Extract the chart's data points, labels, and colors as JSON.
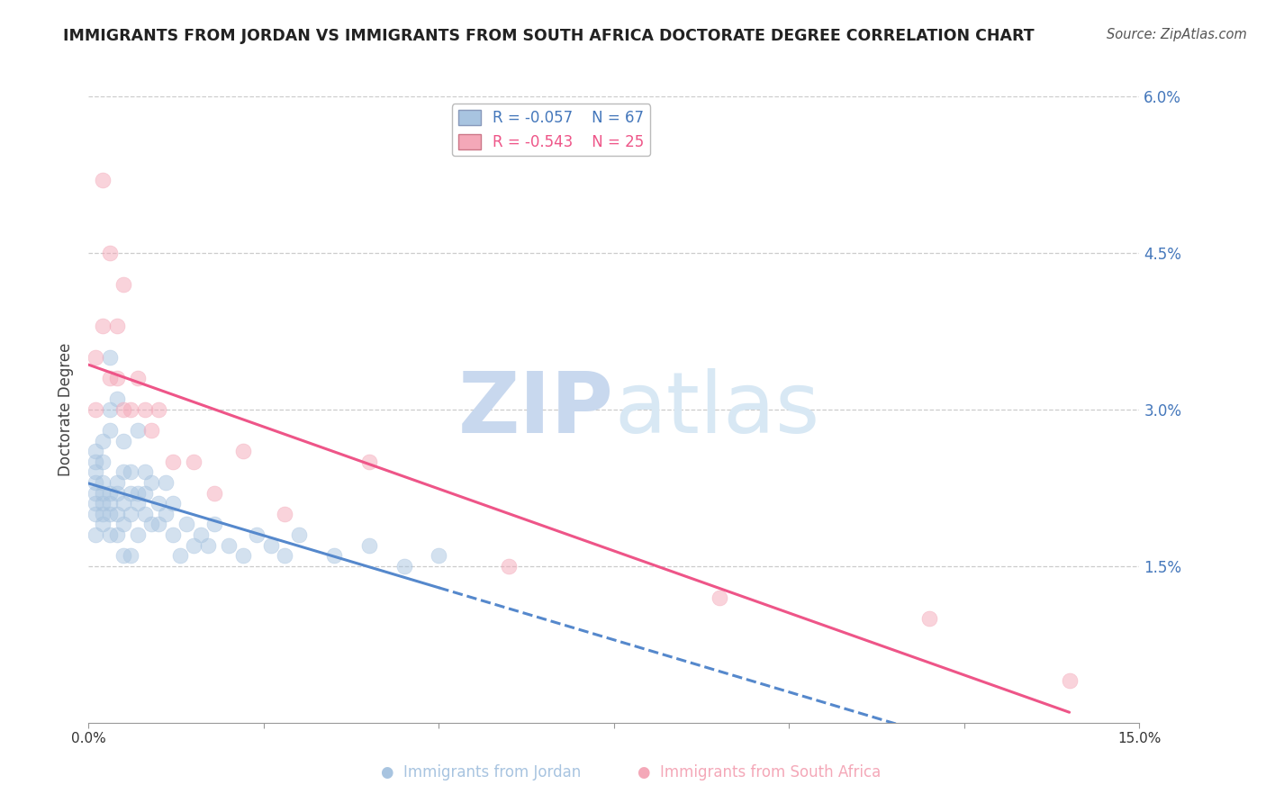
{
  "title": "IMMIGRANTS FROM JORDAN VS IMMIGRANTS FROM SOUTH AFRICA DOCTORATE DEGREE CORRELATION CHART",
  "source": "Source: ZipAtlas.com",
  "ylabel": "Doctorate Degree",
  "right_yticks": [
    0.0,
    0.015,
    0.03,
    0.045,
    0.06
  ],
  "right_yticklabels": [
    "",
    "1.5%",
    "3.0%",
    "4.5%",
    "6.0%"
  ],
  "xlim": [
    0.0,
    0.15
  ],
  "ylim": [
    0.0,
    0.06
  ],
  "jordan_color": "#A8C4E0",
  "south_africa_color": "#F4A8B8",
  "jordan_line_color": "#5588CC",
  "sa_line_color": "#EE5588",
  "jordan_R": -0.057,
  "jordan_N": 67,
  "south_africa_R": -0.543,
  "south_africa_N": 25,
  "jordan_x": [
    0.001,
    0.001,
    0.001,
    0.001,
    0.001,
    0.001,
    0.001,
    0.001,
    0.002,
    0.002,
    0.002,
    0.002,
    0.002,
    0.002,
    0.002,
    0.003,
    0.003,
    0.003,
    0.003,
    0.003,
    0.003,
    0.003,
    0.004,
    0.004,
    0.004,
    0.004,
    0.004,
    0.005,
    0.005,
    0.005,
    0.005,
    0.005,
    0.006,
    0.006,
    0.006,
    0.006,
    0.007,
    0.007,
    0.007,
    0.007,
    0.008,
    0.008,
    0.008,
    0.009,
    0.009,
    0.01,
    0.01,
    0.011,
    0.011,
    0.012,
    0.012,
    0.013,
    0.014,
    0.015,
    0.016,
    0.017,
    0.018,
    0.02,
    0.022,
    0.024,
    0.026,
    0.028,
    0.03,
    0.035,
    0.04,
    0.045,
    0.05
  ],
  "jordan_y": [
    0.022,
    0.024,
    0.025,
    0.026,
    0.02,
    0.021,
    0.023,
    0.018,
    0.019,
    0.021,
    0.022,
    0.023,
    0.025,
    0.027,
    0.02,
    0.018,
    0.02,
    0.022,
    0.028,
    0.03,
    0.021,
    0.035,
    0.022,
    0.023,
    0.031,
    0.018,
    0.02,
    0.019,
    0.021,
    0.024,
    0.016,
    0.027,
    0.022,
    0.024,
    0.016,
    0.02,
    0.018,
    0.021,
    0.028,
    0.022,
    0.02,
    0.022,
    0.024,
    0.019,
    0.023,
    0.019,
    0.021,
    0.02,
    0.023,
    0.018,
    0.021,
    0.016,
    0.019,
    0.017,
    0.018,
    0.017,
    0.019,
    0.017,
    0.016,
    0.018,
    0.017,
    0.016,
    0.018,
    0.016,
    0.017,
    0.015,
    0.016
  ],
  "south_africa_x": [
    0.001,
    0.001,
    0.002,
    0.002,
    0.003,
    0.003,
    0.004,
    0.004,
    0.005,
    0.005,
    0.006,
    0.007,
    0.008,
    0.009,
    0.01,
    0.012,
    0.015,
    0.018,
    0.022,
    0.028,
    0.04,
    0.06,
    0.09,
    0.12,
    0.14
  ],
  "south_africa_y": [
    0.035,
    0.03,
    0.038,
    0.052,
    0.033,
    0.045,
    0.038,
    0.033,
    0.042,
    0.03,
    0.03,
    0.033,
    0.03,
    0.028,
    0.03,
    0.025,
    0.025,
    0.022,
    0.026,
    0.02,
    0.025,
    0.015,
    0.012,
    0.01,
    0.004
  ],
  "watermark_zip": "ZIP",
  "watermark_atlas": "atlas",
  "background_color": "#ffffff",
  "grid_color": "#cccccc"
}
